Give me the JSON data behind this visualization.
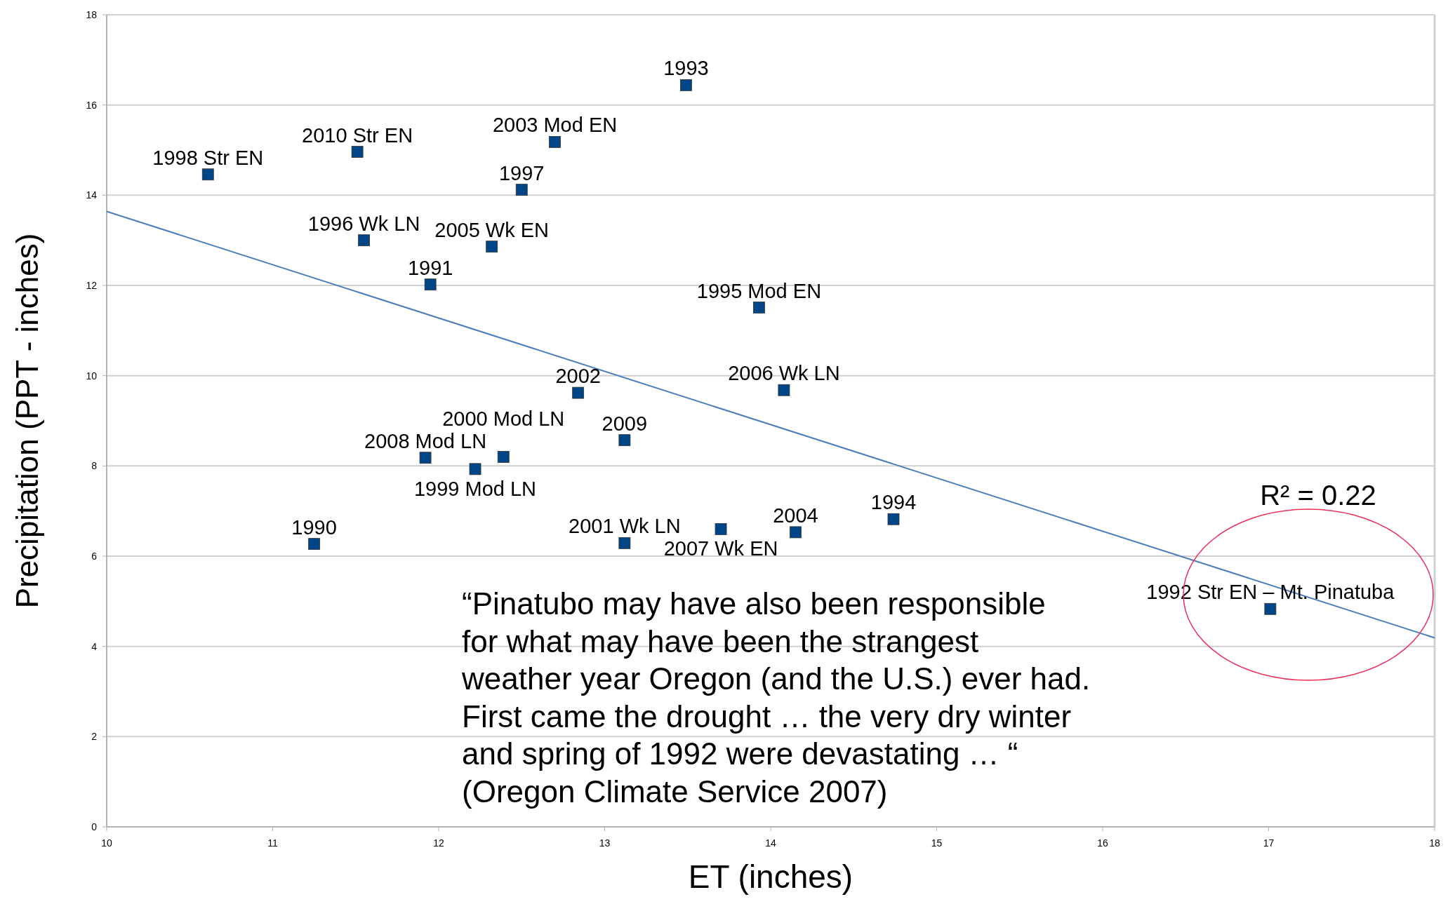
{
  "chart_data": {
    "type": "scatter",
    "xlabel": "ET (inches)",
    "ylabel": "Precipitation (PPT - inches)",
    "xlim": [
      10,
      18
    ],
    "xticks": [
      10,
      11,
      12,
      13,
      14,
      15,
      16,
      17,
      18
    ],
    "ylim": [
      0,
      18
    ],
    "yticks": [
      0,
      2,
      4,
      6,
      8,
      10,
      12,
      14,
      16,
      18
    ],
    "grid": "y",
    "legend": false,
    "marker": "square",
    "series": [
      {
        "color": "#004586",
        "x": [
          10.61,
          11.51,
          11.55,
          11.95,
          11.25,
          11.92,
          12.22,
          12.39,
          12.32,
          12.5,
          12.7,
          12.84,
          13.12,
          13.12,
          13.49,
          13.7,
          13.93,
          14.08,
          14.15,
          14.74,
          17.01
        ],
        "values": [
          14.46,
          14.96,
          13.0,
          12.02,
          6.27,
          8.18,
          7.93,
          8.2,
          12.86,
          14.12,
          15.18,
          9.62,
          8.57,
          6.29,
          16.44,
          6.6,
          11.51,
          9.68,
          6.53,
          6.82,
          4.83
        ]
      },
      {
        "type": "line",
        "marker": "none",
        "color": "#4a7ebb",
        "x": [
          10,
          18
        ],
        "values": [
          13.64,
          4.19
        ]
      }
    ],
    "annotations": [
      "R² = 0.22",
      "“Pinatubo may have also been responsible\nfor what may have been the strangest\nweather year Oregon (and the U.S.) ever had.\nFirst came the drought … the very dry winter\nand spring of 1992 were devastating … “\n(Oregon Climate Service 2007)",
      {
        "text": "1998 Str EN",
        "x": 10.61,
        "y": 14.46
      },
      {
        "text": "2010 Str EN",
        "x": 11.51,
        "y": 14.96
      },
      {
        "text": "1996 Wk LN",
        "x": 11.55,
        "y": 13.0
      },
      {
        "text": "1991",
        "x": 11.95,
        "y": 12.02
      },
      {
        "text": "1990",
        "x": 11.25,
        "y": 6.27
      },
      {
        "text": "2008 Mod LN",
        "x": 11.92,
        "y": 8.18
      },
      {
        "text": "1999 Mod LN",
        "x": 12.22,
        "y": 7.93
      },
      {
        "text": "2000 Mod LN",
        "x": 12.39,
        "y": 8.2
      },
      {
        "text": "2005 Wk EN",
        "x": 12.32,
        "y": 12.86
      },
      {
        "text": "1997",
        "x": 12.5,
        "y": 14.12
      },
      {
        "text": "2003 Mod EN",
        "x": 12.7,
        "y": 15.18
      },
      {
        "text": "2002",
        "x": 12.84,
        "y": 9.62
      },
      {
        "text": "2009",
        "x": 13.12,
        "y": 8.57
      },
      {
        "text": "2001 Wk LN",
        "x": 13.12,
        "y": 6.29
      },
      {
        "text": "1993",
        "x": 13.49,
        "y": 16.44
      },
      {
        "text": "2007 Wk EN",
        "x": 13.7,
        "y": 6.6
      },
      {
        "text": "1995 Mod EN",
        "x": 13.93,
        "y": 11.51
      },
      {
        "text": "2006 Wk LN",
        "x": 14.08,
        "y": 9.68
      },
      {
        "text": "2004",
        "x": 14.15,
        "y": 6.53
      },
      {
        "text": "1994",
        "x": 14.74,
        "y": 6.82
      },
      {
        "text": "1992 Str EN – Mt. Pinatuba",
        "x": 17.01,
        "y": 4.83
      }
    ]
  }
}
